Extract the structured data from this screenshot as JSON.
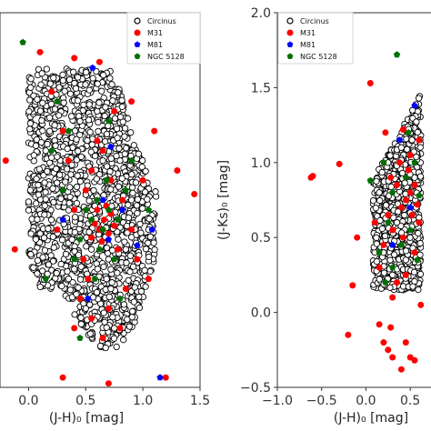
{
  "chart_data": [
    {
      "type": "scatter",
      "xlabel": "(J-H)₀ [mag]",
      "ylabel": "",
      "xlim": [
        -0.25,
        1.5
      ],
      "ylim": [
        -0.6,
        1.3
      ],
      "xticks": [
        0.0,
        0.5,
        1.0,
        1.5
      ],
      "xtick_labels": [
        "0.0",
        "0.5",
        "1.0",
        "1.5"
      ],
      "yticks": [],
      "legend_position": "top-right",
      "grid": false,
      "series": [
        {
          "name": "Circinus",
          "marker": "open-circle",
          "color": "#000000",
          "region": [
            [
              0.1,
              -0.1
            ],
            [
              0.0,
              0.05
            ],
            [
              0.0,
              0.6
            ],
            [
              0.0,
              1.02
            ],
            [
              0.3,
              1.02
            ],
            [
              0.75,
              1.02
            ],
            [
              0.78,
              0.95
            ],
            [
              0.95,
              0.6
            ],
            [
              1.12,
              0.42
            ],
            [
              1.12,
              0.3
            ],
            [
              1.1,
              0.05
            ],
            [
              0.95,
              -0.25
            ],
            [
              0.8,
              -0.4
            ],
            [
              0.6,
              -0.4
            ],
            [
              0.25,
              -0.1
            ]
          ],
          "points": [
            [
              0.55,
              0.1
            ],
            [
              0.62,
              0.2
            ],
            [
              0.7,
              0.05
            ],
            [
              0.4,
              0.0
            ],
            [
              0.85,
              0.1
            ],
            [
              0.5,
              -0.2
            ],
            [
              0.75,
              -0.3
            ],
            [
              0.3,
              0.4
            ],
            [
              0.65,
              0.55
            ],
            [
              0.9,
              0.35
            ],
            [
              0.45,
              0.75
            ],
            [
              0.2,
              0.25
            ],
            [
              0.72,
              -0.1
            ],
            [
              0.58,
              0.32
            ],
            [
              0.38,
              0.15
            ],
            [
              1.05,
              0.2
            ],
            [
              0.15,
              0.6
            ],
            [
              0.6,
              0.8
            ],
            [
              0.8,
              0.55
            ],
            [
              0.35,
              -0.05
            ]
          ]
        },
        {
          "name": "M31",
          "marker": "circle",
          "color": "#ff0000",
          "points": [
            [
              0.62,
              0.2
            ],
            [
              0.66,
              0.25
            ],
            [
              0.7,
              0.18
            ],
            [
              0.58,
              0.23
            ],
            [
              0.72,
              0.28
            ],
            [
              0.64,
              0.14
            ],
            [
              0.68,
              0.32
            ],
            [
              0.55,
              0.16
            ],
            [
              0.75,
              0.22
            ],
            [
              0.6,
              0.3
            ],
            [
              0.48,
              0.05
            ],
            [
              0.82,
              0.35
            ],
            [
              0.52,
              -0.05
            ],
            [
              0.78,
              0.1
            ],
            [
              0.7,
              -0.2
            ],
            [
              0.55,
              0.5
            ],
            [
              0.4,
              0.3
            ],
            [
              0.9,
              0.2
            ],
            [
              0.65,
              -0.35
            ],
            [
              0.3,
              0.7
            ],
            [
              0.2,
              0.9
            ],
            [
              0.75,
              0.8
            ],
            [
              1.0,
              0.45
            ],
            [
              0.45,
              -0.15
            ],
            [
              0.85,
              -0.1
            ],
            [
              0.6,
              0.65
            ],
            [
              0.35,
              0.55
            ],
            [
              0.95,
              0.05
            ],
            [
              0.5,
              0.4
            ],
            [
              0.72,
              0.45
            ],
            [
              0.4,
              -0.3
            ],
            [
              0.8,
              -0.3
            ],
            [
              0.25,
              0.2
            ],
            [
              1.05,
              -0.05
            ],
            [
              0.65,
              0.6
            ],
            [
              0.55,
              -0.25
            ],
            [
              -0.2,
              0.55
            ],
            [
              -0.12,
              0.1
            ],
            [
              0.3,
              -0.55
            ],
            [
              0.62,
              1.05
            ],
            [
              0.4,
              1.07
            ],
            [
              1.45,
              0.38
            ],
            [
              1.3,
              0.5
            ],
            [
              1.2,
              -0.55
            ],
            [
              0.7,
              -0.58
            ],
            [
              0.1,
              1.1
            ],
            [
              0.9,
              0.85
            ],
            [
              1.1,
              0.7
            ]
          ]
        },
        {
          "name": "M81",
          "marker": "pentagon",
          "color": "#0000ff",
          "points": [
            [
              0.56,
              1.02
            ],
            [
              0.72,
              0.62
            ],
            [
              0.82,
              0.3
            ],
            [
              0.7,
              0.15
            ],
            [
              0.95,
              0.12
            ],
            [
              0.3,
              0.25
            ],
            [
              0.52,
              -0.15
            ],
            [
              1.15,
              -0.55
            ],
            [
              0.65,
              0.35
            ],
            [
              1.08,
              0.2
            ]
          ]
        },
        {
          "name": "NGC 5128",
          "marker": "pentagon",
          "color": "#007000",
          "points": [
            [
              0.6,
              0.35
            ],
            [
              0.55,
              0.25
            ],
            [
              0.65,
              0.2
            ],
            [
              0.7,
              0.3
            ],
            [
              0.62,
              0.1
            ],
            [
              0.5,
              0.3
            ],
            [
              0.78,
              0.25
            ],
            [
              0.45,
              0.15
            ],
            [
              0.68,
              0.45
            ],
            [
              0.4,
              0.05
            ],
            [
              0.75,
              0.05
            ],
            [
              0.58,
              -0.05
            ],
            [
              0.3,
              0.4
            ],
            [
              0.85,
              0.4
            ],
            [
              0.2,
              0.6
            ],
            [
              0.9,
              0.55
            ],
            [
              0.35,
              0.7
            ],
            [
              0.7,
              0.75
            ],
            [
              1.05,
              0.3
            ],
            [
              0.15,
              -0.05
            ],
            [
              0.8,
              -0.15
            ],
            [
              0.45,
              -0.35
            ],
            [
              -0.05,
              1.15
            ],
            [
              1.1,
              -0.63
            ],
            [
              0.25,
              0.85
            ]
          ]
        }
      ]
    },
    {
      "type": "scatter",
      "xlabel": "(J-H)₀ [mag]",
      "ylabel": "(J-Ks)₀ [mag]",
      "xlim": [
        -1.0,
        0.95
      ],
      "ylim": [
        -0.5,
        2.0
      ],
      "xticks": [
        -1.0,
        -0.5,
        0.0,
        0.5
      ],
      "xtick_labels": [
        "−1.0",
        "−0.5",
        "0.0",
        "0.5"
      ],
      "yticks": [
        -0.5,
        0.0,
        0.5,
        1.0,
        1.5,
        2.0
      ],
      "ytick_labels": [
        "−0.5",
        "0.0",
        "0.5",
        "1.0",
        "1.5",
        "2.0"
      ],
      "legend_position": "top-left",
      "grid": false,
      "series": [
        {
          "name": "Circinus",
          "marker": "open-circle",
          "color": "#000000",
          "region": [
            [
              0.08,
              0.15
            ],
            [
              0.08,
              0.9
            ],
            [
              0.3,
              1.1
            ],
            [
              0.5,
              1.33
            ],
            [
              0.62,
              1.48
            ],
            [
              0.62,
              0.15
            ]
          ],
          "points": [
            [
              0.2,
              0.4
            ],
            [
              0.35,
              0.6
            ],
            [
              0.15,
              0.8
            ],
            [
              0.45,
              0.35
            ],
            [
              0.3,
              0.25
            ],
            [
              0.55,
              0.9
            ],
            [
              0.25,
              1.0
            ],
            [
              0.4,
              1.1
            ]
          ]
        },
        {
          "name": "M31",
          "marker": "circle",
          "color": "#ff0000",
          "points": [
            [
              0.5,
              0.8
            ],
            [
              0.45,
              0.75
            ],
            [
              0.55,
              0.85
            ],
            [
              0.4,
              0.7
            ],
            [
              0.52,
              0.65
            ],
            [
              0.48,
              0.95
            ],
            [
              0.35,
              0.85
            ],
            [
              0.58,
              0.72
            ],
            [
              0.3,
              0.55
            ],
            [
              0.42,
              0.5
            ],
            [
              0.25,
              0.65
            ],
            [
              0.5,
              1.05
            ],
            [
              0.38,
              1.0
            ],
            [
              0.2,
              0.45
            ],
            [
              0.55,
              0.4
            ],
            [
              0.15,
              0.3
            ],
            [
              0.45,
              0.25
            ],
            [
              0.28,
              0.9
            ],
            [
              0.6,
              1.15
            ],
            [
              0.35,
              0.2
            ],
            [
              0.1,
              0.6
            ],
            [
              0.22,
              1.2
            ],
            [
              0.42,
              1.22
            ],
            [
              -0.62,
              0.9
            ],
            [
              -0.6,
              0.91
            ],
            [
              -0.3,
              0.99
            ],
            [
              -0.1,
              0.5
            ],
            [
              -0.15,
              0.18
            ],
            [
              -0.2,
              -0.15
            ],
            [
              0.05,
              1.53
            ],
            [
              0.3,
              0.1
            ],
            [
              0.28,
              -0.1
            ],
            [
              0.2,
              -0.2
            ],
            [
              0.45,
              -0.2
            ],
            [
              0.5,
              -0.3
            ],
            [
              0.55,
              -0.32
            ],
            [
              0.4,
              -0.38
            ],
            [
              0.3,
              -0.3
            ],
            [
              0.15,
              -0.08
            ],
            [
              0.62,
              0.05
            ],
            [
              0.25,
              -0.25
            ],
            [
              0.6,
              0.6
            ]
          ]
        },
        {
          "name": "M81",
          "marker": "pentagon",
          "color": "#0000ff",
          "points": [
            [
              0.55,
              1.38
            ],
            [
              0.38,
              1.15
            ],
            [
              0.5,
              0.7
            ],
            [
              0.3,
              0.45
            ]
          ]
        },
        {
          "name": "NGC 5128",
          "marker": "pentagon",
          "color": "#007000",
          "points": [
            [
              0.35,
              1.72
            ],
            [
              0.3,
              0.8
            ],
            [
              0.45,
              0.9
            ],
            [
              0.25,
              0.6
            ],
            [
              0.5,
              0.55
            ],
            [
              0.4,
              0.45
            ],
            [
              0.2,
              1.0
            ],
            [
              0.55,
              1.0
            ],
            [
              0.15,
              0.4
            ],
            [
              0.6,
              0.78
            ],
            [
              0.05,
              0.88
            ],
            [
              0.3,
              0.3
            ],
            [
              0.48,
              1.2
            ],
            [
              0.22,
              0.2
            ],
            [
              0.58,
              0.35
            ]
          ]
        }
      ]
    }
  ]
}
